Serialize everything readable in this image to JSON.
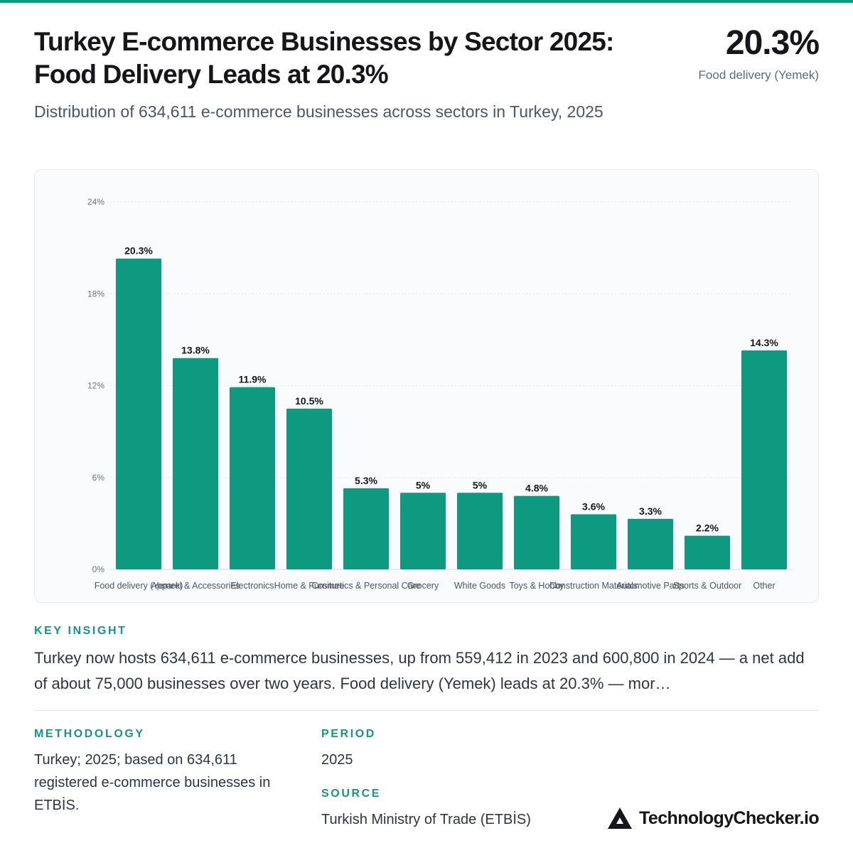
{
  "header": {
    "title_line1": "Turkey E-commerce Businesses by Sector 2025:",
    "title_line2": "Food Delivery Leads at 20.3%",
    "subtitle": "Distribution of 634,611 e-commerce businesses across sectors in Turkey, 2025",
    "kpi_value": "20.3%",
    "kpi_label": "Food delivery (Yemek)"
  },
  "chart_data": {
    "type": "bar",
    "categories": [
      "Food delivery (Yemek)",
      "Apparel & Accessories",
      "Electronics",
      "Home & Furniture",
      "Cosmetics & Personal Care",
      "Grocery",
      "White Goods",
      "Toys & Hobby",
      "Construction Materials",
      "Automotive Parts",
      "Sports & Outdoor",
      "Other"
    ],
    "values": [
      20.3,
      13.8,
      11.9,
      10.5,
      5.3,
      5,
      5,
      4.8,
      3.6,
      3.3,
      2.2,
      14.3
    ],
    "value_labels": [
      "20.3%",
      "13.8%",
      "11.9%",
      "10.5%",
      "5.3%",
      "5%",
      "5%",
      "4.8%",
      "3.6%",
      "3.3%",
      "2.2%",
      "14.3%"
    ],
    "yticks": [
      0,
      6,
      12,
      18,
      24
    ],
    "ytick_labels": [
      "0%",
      "6%",
      "12%",
      "18%",
      "24%"
    ],
    "ylim": [
      0,
      24
    ],
    "grid": true,
    "bar_color": "#0e9a80"
  },
  "insight": {
    "label": "KEY INSIGHT",
    "text": "Turkey now hosts 634,611 e-commerce businesses, up from 559,412 in 2023 and 600,800 in 2024 — a net add of about 75,000 businesses over two years. Food delivery (Yemek) leads at 20.3% — mor…"
  },
  "methodology": {
    "label": "METHODOLOGY",
    "text": "Turkey; 2025; based on 634,611 registered e-commerce businesses in ETBİS."
  },
  "period": {
    "label": "PERIOD",
    "value": "2025"
  },
  "source": {
    "label": "SOURCE",
    "value": "Turkish Ministry of Trade (ETBİS)"
  },
  "brand": {
    "name": "TechnologyChecker.io",
    "icon": "triangle-logo-icon"
  },
  "colors": {
    "accent": "#0e9a80",
    "text": "#16161a",
    "muted": "#5e6a78"
  }
}
